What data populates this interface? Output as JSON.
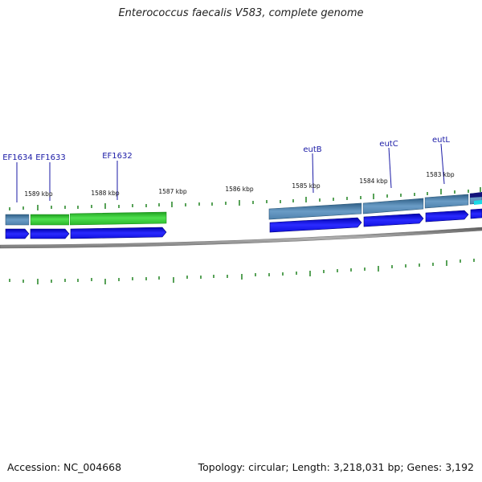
{
  "title": "Enterococcus faecalis V583, complete genome",
  "accession_text": "Accession: NC_004668",
  "summary_text": "Topology: circular; Length: 3,218,031 bp; Genes: 3,192",
  "colors": {
    "gene_label": "#1a1aa6",
    "tick": "#2e8b2e",
    "cds_blue": "#1010e0",
    "gene_green": "#35c935",
    "gene_steel": "#4f82ad",
    "backbone": "#808080"
  },
  "gene_labels": [
    "EF1634",
    "EF1633",
    "EF1632",
    "eutB",
    "eutC",
    "eutL"
  ],
  "kbp_labels": [
    "1589 kbp",
    "1588 kbp",
    "1587 kbp",
    "1586 kbp",
    "1585 kbp",
    "1584 kbp",
    "1583 kbp"
  ]
}
